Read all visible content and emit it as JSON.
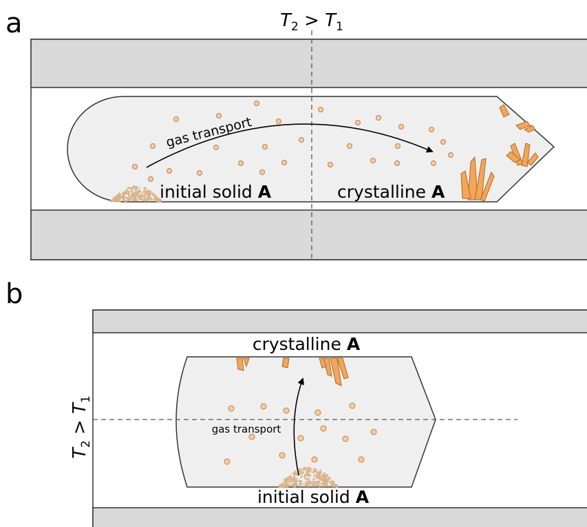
{
  "panels": [
    {
      "label": "a",
      "temperature": [
        {
          "text": "T",
          "sub": "2"
        },
        {
          "text": " > T",
          "sub": "1"
        }
      ],
      "gas_transport": "gas transport",
      "initial_solid": {
        "text": "initial solid ",
        "bold": "A"
      },
      "crystalline": {
        "text": "crystalline ",
        "bold": "A"
      }
    },
    {
      "label": "b",
      "temperature": [
        {
          "text": "T",
          "sub": "2"
        },
        {
          "text": " > T",
          "sub": "1"
        }
      ],
      "gas_transport": "gas transport",
      "initial_solid": {
        "text": "initial solid ",
        "bold": "A"
      },
      "crystalline": {
        "text": "crystalline ",
        "bold": "A"
      }
    }
  ]
}
